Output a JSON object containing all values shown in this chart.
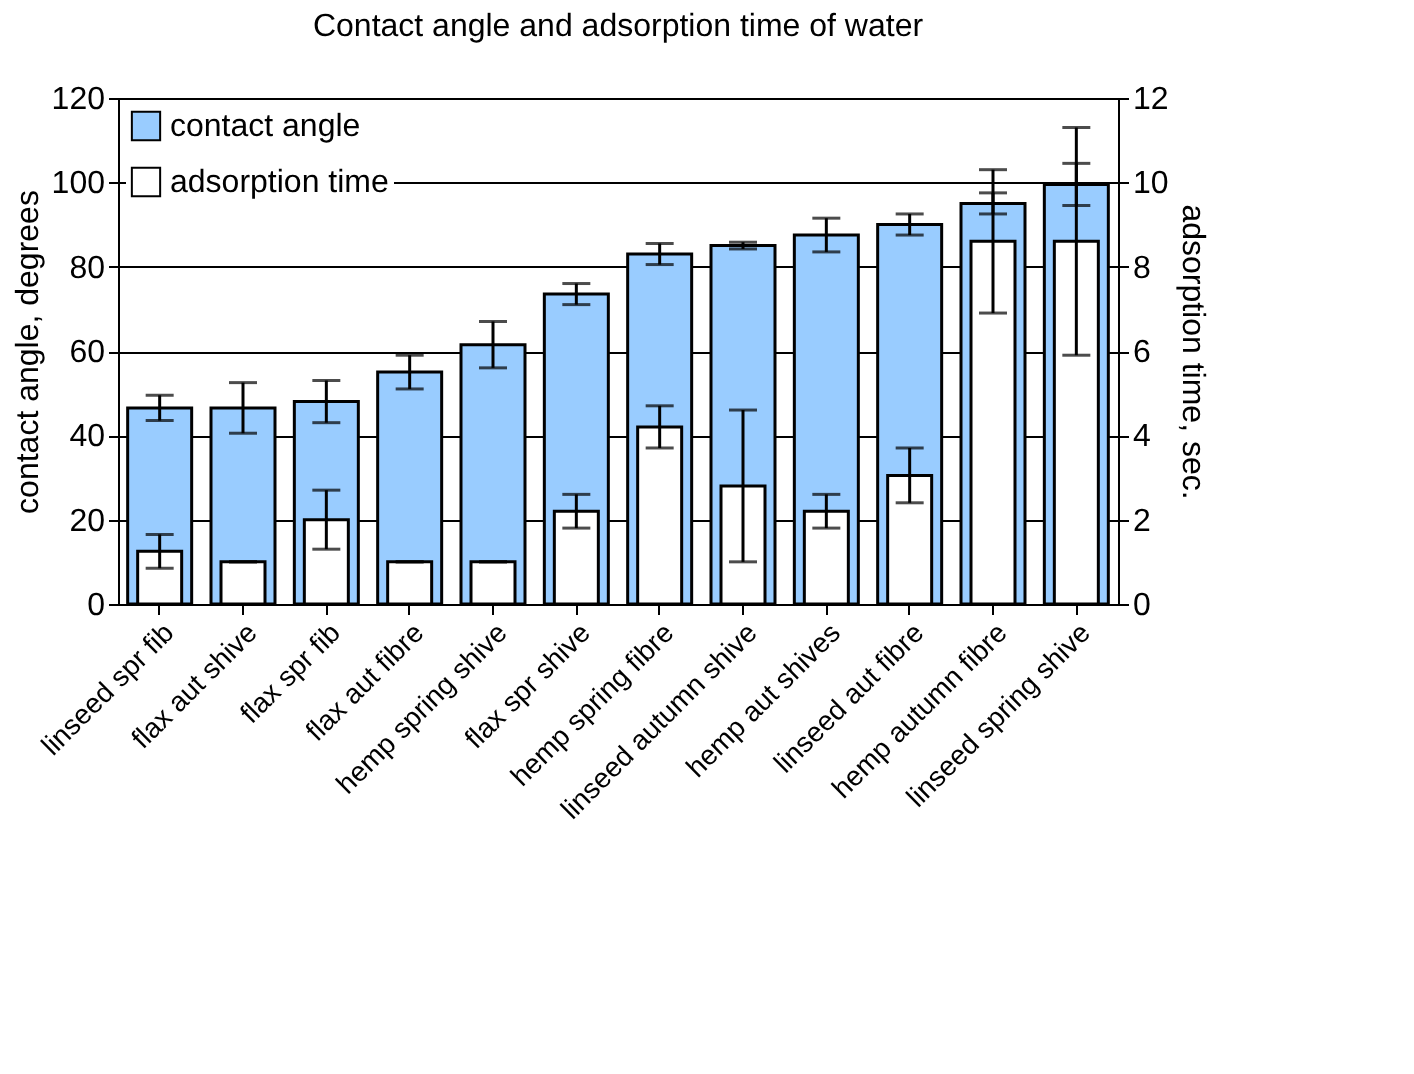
{
  "chart_data": {
    "type": "bar",
    "title": "Contact angle and adsorption time of water",
    "ylabel": "contact angle, degrees",
    "y2label": "adsorption time, sec.",
    "categories": [
      "linseed spr fib",
      "flax aut shive",
      "flax spr fib",
      "flax aut fibre",
      "hemp spring shive",
      "flax spr shive",
      "hemp spring fibre",
      "linseed autumn shive",
      "hemp aut shives",
      "linseed aut fibre",
      "hemp autumn fibre",
      "linseed spring shive"
    ],
    "series": [
      {
        "name": "contact angle",
        "color": "#99ccff",
        "values": [
          46.5,
          46.5,
          48,
          55,
          61.5,
          73.5,
          83,
          85,
          87.5,
          90,
          95,
          99.5
        ],
        "errors": [
          3,
          6,
          5,
          4,
          5.5,
          2.5,
          2.5,
          0.8,
          4,
          2.5,
          2.5,
          5
        ]
      },
      {
        "name": "adsorption time",
        "color": "#ffffff",
        "axis": "y2",
        "values": [
          1.25,
          1.0,
          2.0,
          1.0,
          1.0,
          2.2,
          4.2,
          2.8,
          2.2,
          3.05,
          8.6,
          8.6
        ],
        "errors": [
          0.4,
          0,
          0.7,
          0,
          0,
          0.4,
          0.5,
          1.8,
          0.4,
          0.65,
          1.7,
          2.7
        ]
      }
    ],
    "ylim": [
      0,
      120
    ],
    "yticks": [
      0,
      20,
      40,
      60,
      80,
      100,
      120
    ],
    "y2lim": [
      0,
      12
    ],
    "y2ticks": [
      0,
      2,
      4,
      6,
      8,
      10,
      12
    ],
    "grid": "y",
    "legend": "top left"
  }
}
